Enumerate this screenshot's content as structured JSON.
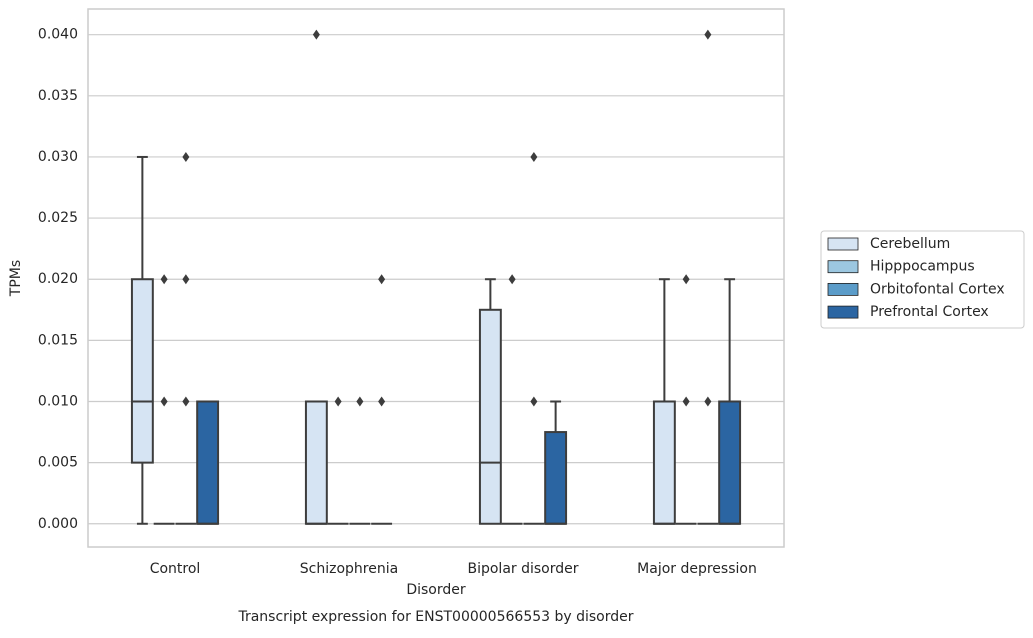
{
  "chart_data": {
    "type": "box",
    "title": "Transcript expression for ENST00000566553 by disorder",
    "x_label": "Disorder",
    "y_label": "TPMs",
    "categories": [
      "Control",
      "Schizophrenia",
      "Bipolar disorder",
      "Major depression"
    ],
    "ylim": [
      -0.0019,
      0.0421
    ],
    "yticks": [
      {
        "value": 0,
        "label": "0.000"
      },
      {
        "value": 0.005,
        "label": "0.005"
      },
      {
        "value": 0.01,
        "label": "0.010"
      },
      {
        "value": 0.015,
        "label": "0.015"
      },
      {
        "value": 0.02,
        "label": "0.020"
      },
      {
        "value": 0.025,
        "label": "0.025"
      },
      {
        "value": 0.03,
        "label": "0.030"
      },
      {
        "value": 0.035,
        "label": "0.035"
      },
      {
        "value": 0.04,
        "label": "0.040"
      }
    ],
    "grid": true,
    "legend": "right",
    "series": [
      {
        "name": "Cerebellum",
        "color": "#d6e4f3",
        "boxes": [
          {
            "min": 0,
            "q1": 0.005,
            "median": 0.01,
            "q3": 0.02,
            "max": 0.03,
            "outliers": []
          },
          {
            "min": 0,
            "q1": 0,
            "median": 0,
            "q3": 0.01,
            "max": 0.01,
            "outliers": [
              0.04
            ]
          },
          {
            "min": 0,
            "q1": 0,
            "median": 0.005,
            "q3": 0.0175,
            "max": 0.02,
            "outliers": []
          },
          {
            "min": 0,
            "q1": 0,
            "median": 0,
            "q3": 0.01,
            "max": 0.02,
            "outliers": []
          }
        ]
      },
      {
        "name": "Hipppocampus",
        "color": "#9cc7e0",
        "boxes": [
          {
            "min": 0,
            "q1": 0,
            "median": 0,
            "q3": 0,
            "max": 0,
            "outliers": [
              0.01,
              0.02
            ]
          },
          {
            "min": 0,
            "q1": 0,
            "median": 0,
            "q3": 0,
            "max": 0,
            "outliers": [
              0.01
            ]
          },
          {
            "min": 0,
            "q1": 0,
            "median": 0,
            "q3": 0,
            "max": 0,
            "outliers": [
              0.02
            ]
          },
          {
            "min": 0,
            "q1": 0,
            "median": 0,
            "q3": 0,
            "max": 0,
            "outliers": [
              0.01,
              0.02
            ]
          }
        ]
      },
      {
        "name": "Orbitofontal Cortex",
        "color": "#5b9cc9",
        "boxes": [
          {
            "min": 0,
            "q1": 0,
            "median": 0,
            "q3": 0,
            "max": 0,
            "outliers": [
              0.01,
              0.02,
              0.03
            ]
          },
          {
            "min": 0,
            "q1": 0,
            "median": 0,
            "q3": 0,
            "max": 0,
            "outliers": [
              0.01
            ]
          },
          {
            "min": 0,
            "q1": 0,
            "median": 0,
            "q3": 0,
            "max": 0,
            "outliers": [
              0.01,
              0.03
            ]
          },
          {
            "min": 0,
            "q1": 0,
            "median": 0,
            "q3": 0,
            "max": 0,
            "outliers": [
              0.01,
              0.04
            ]
          }
        ]
      },
      {
        "name": "Prefrontal Cortex",
        "color": "#2b65a2",
        "boxes": [
          {
            "min": 0,
            "q1": 0,
            "median": 0,
            "q3": 0.01,
            "max": 0.01,
            "outliers": []
          },
          {
            "min": 0,
            "q1": 0,
            "median": 0,
            "q3": 0,
            "max": 0,
            "outliers": [
              0.01,
              0.02
            ]
          },
          {
            "min": 0,
            "q1": 0,
            "median": 0,
            "q3": 0.0075,
            "max": 0.01,
            "outliers": []
          },
          {
            "min": 0,
            "q1": 0,
            "median": 0,
            "q3": 0.01,
            "max": 0.02,
            "outliers": []
          }
        ]
      }
    ]
  }
}
